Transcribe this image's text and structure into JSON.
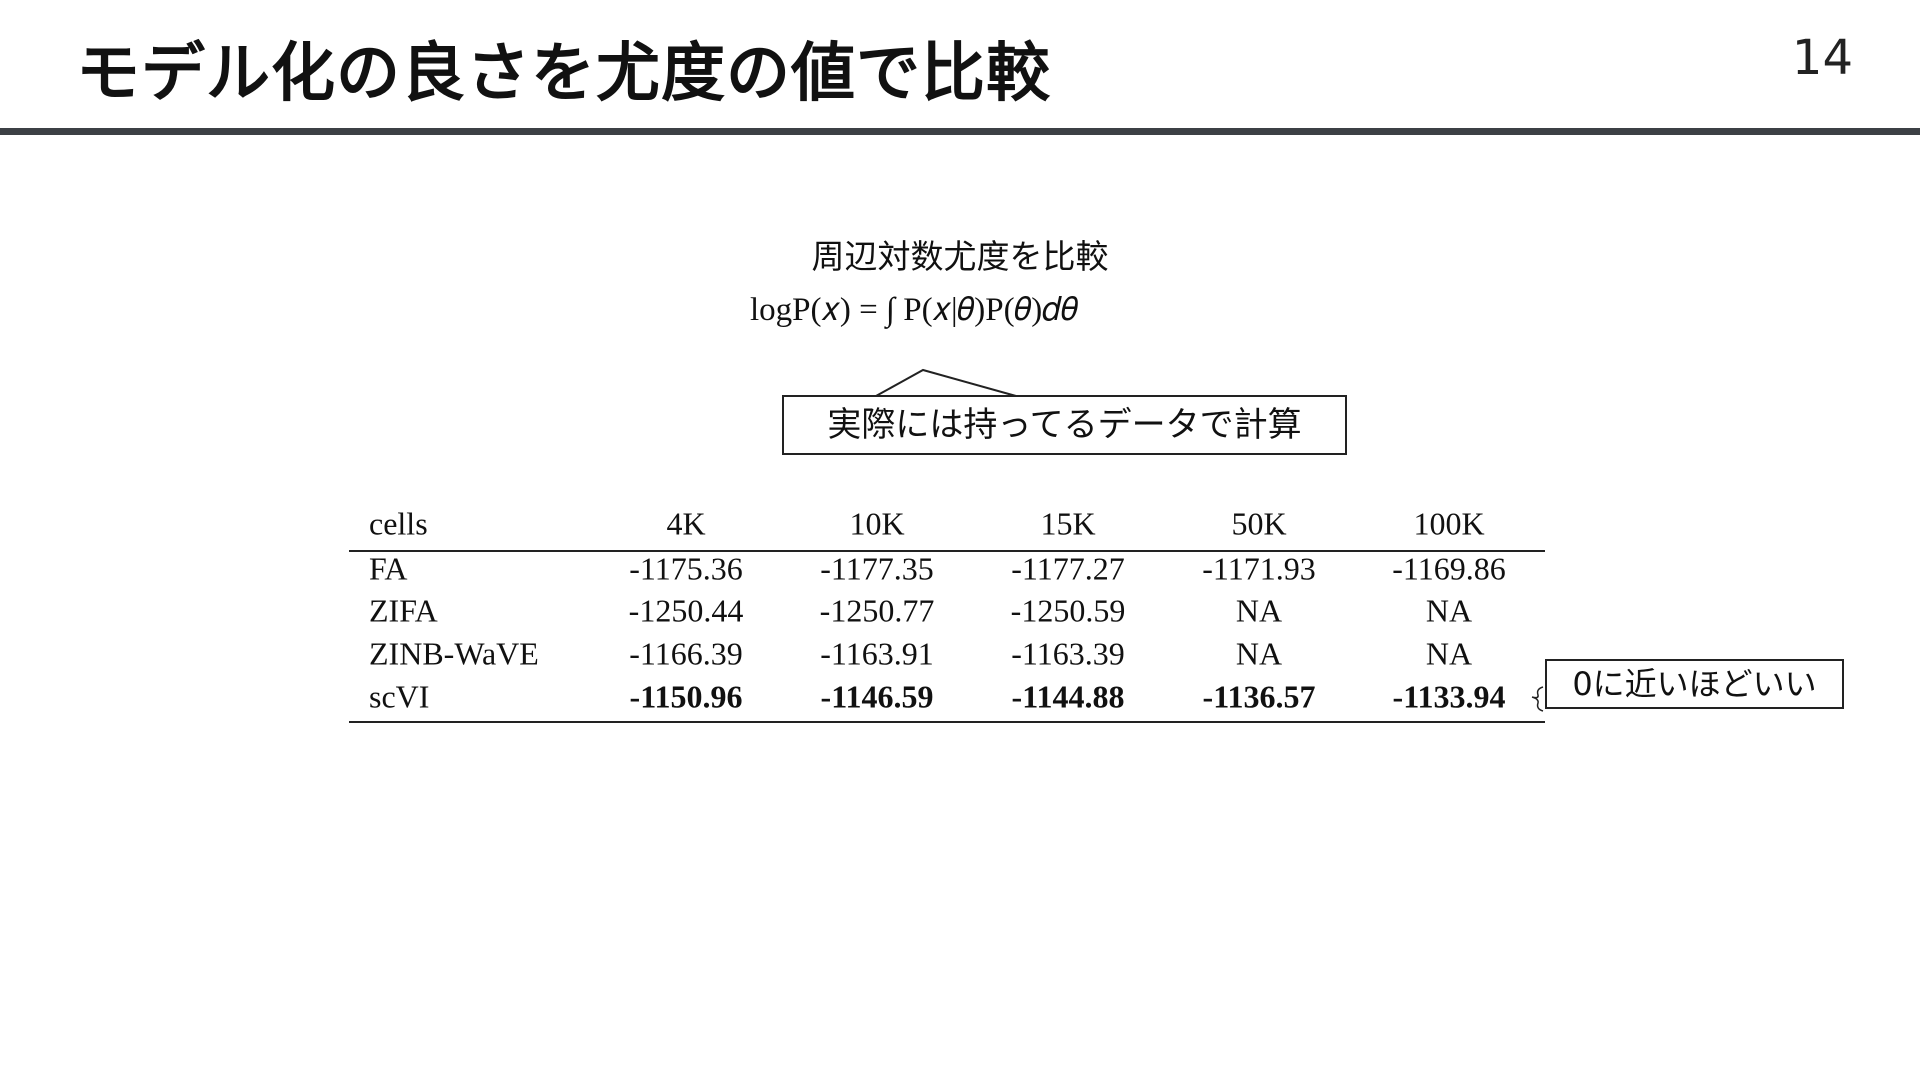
{
  "header": {
    "title": "モデル化の良さを尤度の値で比較",
    "page_number": "14"
  },
  "formula": {
    "caption": "周辺対数尤度を比較",
    "expression": "logP(𝑥) = ∫ P(𝑥|𝜃)P(𝜃)𝑑𝜃",
    "callout": "実際には持ってるデータで計算"
  },
  "table": {
    "header": [
      "cells",
      "4K",
      "10K",
      "15K",
      "50K",
      "100K"
    ],
    "rows": [
      [
        "FA",
        "-1175.36",
        "-1177.35",
        "-1177.27",
        "-1171.93",
        "-1169.86"
      ],
      [
        "ZIFA",
        "-1250.44",
        "-1250.77",
        "-1250.59",
        "NA",
        "NA"
      ],
      [
        "ZINB-WaVE",
        "-1166.39",
        "-1163.91",
        "-1163.39",
        "NA",
        "NA"
      ],
      [
        "scVI",
        "-1150.96",
        "-1146.59",
        "-1144.88",
        "-1136.57",
        "-1133.94"
      ]
    ]
  },
  "annotation": "0に近いほどいい"
}
